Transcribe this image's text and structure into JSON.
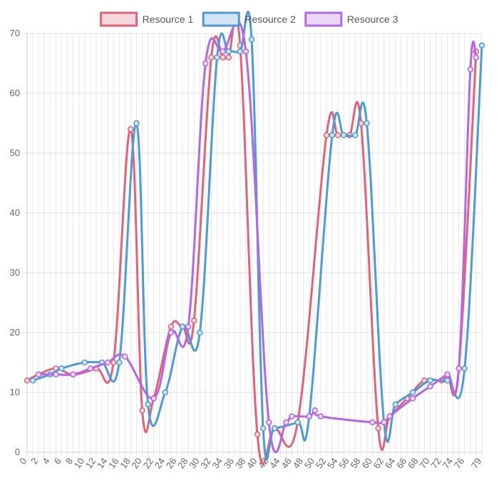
{
  "chart_data": {
    "type": "line",
    "legend_position": "top",
    "grid": true,
    "ylim": [
      0,
      70
    ],
    "xlim": [
      0,
      79
    ],
    "y_ticks": [
      0,
      10,
      20,
      30,
      40,
      50,
      60,
      70
    ],
    "x_ticks": [
      0,
      2,
      4,
      6,
      8,
      10,
      12,
      14,
      16,
      18,
      20,
      22,
      24,
      26,
      28,
      30,
      32,
      34,
      36,
      38,
      40,
      42,
      44,
      46,
      48,
      50,
      52,
      54,
      56,
      58,
      60,
      62,
      64,
      66,
      68,
      70,
      72,
      74,
      76,
      79
    ],
    "x_tick_labels": [
      "0",
      "2",
      "4",
      "6",
      "8",
      "10",
      "12",
      "14",
      "16",
      "18",
      "20",
      "22",
      "24",
      "26",
      "28",
      "30",
      "32",
      "34",
      "36",
      "38",
      "40",
      "42",
      "44",
      "46",
      "48",
      "50",
      "52",
      "54",
      "56",
      "58",
      "60",
      "62",
      "64",
      "66",
      "68",
      "70",
      "72",
      "74",
      "76",
      "79"
    ],
    "series": [
      {
        "name": "Resource 1",
        "color": "#e06377",
        "fill": "#f6d9de",
        "points": [
          [
            0,
            12
          ],
          [
            2,
            13
          ],
          [
            5,
            14
          ],
          [
            8,
            13
          ],
          [
            12,
            14
          ],
          [
            15,
            15
          ],
          [
            18,
            54
          ],
          [
            20,
            7
          ],
          [
            22,
            9
          ],
          [
            25,
            21
          ],
          [
            27,
            21
          ],
          [
            29,
            22
          ],
          [
            32,
            66
          ],
          [
            34,
            66
          ],
          [
            35,
            66
          ],
          [
            37,
            68
          ],
          [
            40,
            3
          ],
          [
            43,
            4
          ],
          [
            47,
            5
          ],
          [
            52,
            53
          ],
          [
            54,
            53
          ],
          [
            56,
            53
          ],
          [
            58,
            55
          ],
          [
            61,
            4
          ],
          [
            63,
            6
          ],
          [
            66,
            9
          ],
          [
            69,
            12
          ],
          [
            72,
            12
          ],
          [
            73,
            13
          ],
          [
            75,
            14
          ],
          [
            78,
            67
          ]
        ]
      },
      {
        "name": "Resource 2",
        "color": "#4a9bd6",
        "fill": "#d3e4f4",
        "points": [
          [
            1,
            12
          ],
          [
            4,
            13
          ],
          [
            6,
            14
          ],
          [
            10,
            15
          ],
          [
            13,
            15
          ],
          [
            16,
            15
          ],
          [
            19,
            55
          ],
          [
            21,
            8
          ],
          [
            24,
            10
          ],
          [
            27,
            21
          ],
          [
            30,
            20
          ],
          [
            33,
            66
          ],
          [
            35,
            67
          ],
          [
            37,
            67
          ],
          [
            39,
            69
          ],
          [
            41,
            4
          ],
          [
            43,
            4
          ],
          [
            47,
            5
          ],
          [
            49,
            6
          ],
          [
            53,
            53
          ],
          [
            55,
            53
          ],
          [
            57,
            53
          ],
          [
            59,
            55
          ],
          [
            62,
            5
          ],
          [
            64,
            8
          ],
          [
            67,
            10
          ],
          [
            70,
            12
          ],
          [
            73,
            12
          ],
          [
            76,
            14
          ],
          [
            79,
            68
          ]
        ]
      },
      {
        "name": "Resource 3",
        "color": "#b466e6",
        "fill": "#e9d8f6",
        "points": [
          [
            2,
            13
          ],
          [
            5,
            13
          ],
          [
            8,
            13
          ],
          [
            11,
            14
          ],
          [
            14,
            15
          ],
          [
            17,
            16
          ],
          [
            22,
            9
          ],
          [
            25,
            20
          ],
          [
            28,
            21
          ],
          [
            31,
            65
          ],
          [
            34,
            67
          ],
          [
            38,
            67
          ],
          [
            42,
            5
          ],
          [
            45,
            5
          ],
          [
            46,
            6
          ],
          [
            49,
            6
          ],
          [
            50,
            7
          ],
          [
            51,
            6
          ],
          [
            60,
            5
          ],
          [
            62,
            5
          ],
          [
            63,
            6
          ],
          [
            67,
            9
          ],
          [
            70,
            11
          ],
          [
            73,
            13
          ],
          [
            75,
            14
          ],
          [
            77,
            64
          ],
          [
            78,
            66
          ]
        ]
      }
    ]
  }
}
